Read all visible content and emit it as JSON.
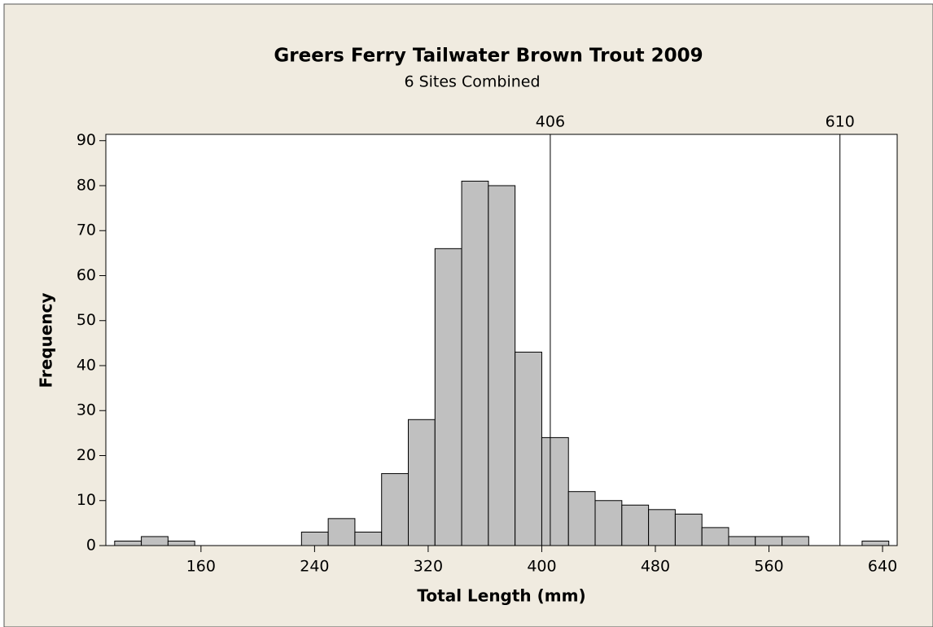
{
  "chart_data": {
    "type": "histogram",
    "title": "Greers Ferry Tailwater Brown Trout 2009",
    "subtitle": "6 Sites Combined",
    "x_label": "Total Length (mm)",
    "y_label": "Frequency",
    "bins": [
      99.2,
      118,
      136.8,
      155.6,
      174.4,
      193.2,
      212,
      230.8,
      249.6,
      268.4,
      287.2,
      306,
      324.8,
      343.6,
      362.4,
      381.2,
      400,
      418.8,
      437.6,
      456.4,
      475.2,
      494,
      512.8,
      531.6,
      550.4,
      569.2,
      588,
      606.8,
      625.6,
      644.4
    ],
    "values": [
      1,
      2,
      1,
      0,
      0,
      0,
      0,
      3,
      6,
      3,
      16,
      28,
      66,
      81,
      80,
      43,
      24,
      12,
      10,
      9,
      8,
      7,
      4,
      2,
      2,
      2,
      0,
      0,
      1
    ],
    "color": "#c0c0c0",
    "reference_lines": [
      406,
      610
    ],
    "xlim": [
      93,
      650.3
    ],
    "ylim": [
      0,
      91.4
    ],
    "xticks": [
      160,
      240,
      320,
      400,
      480,
      560,
      640
    ],
    "yticks": [
      0,
      10,
      20,
      30,
      40,
      50,
      60,
      70,
      80,
      90
    ]
  }
}
